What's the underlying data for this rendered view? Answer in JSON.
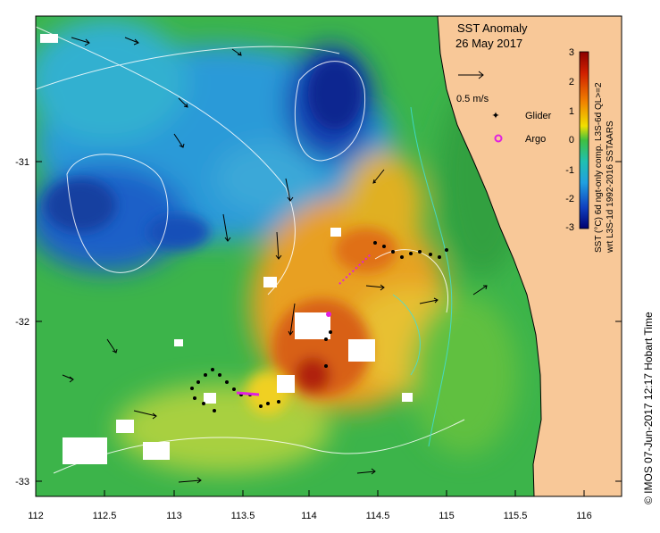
{
  "map": {
    "title": "SST Anomaly",
    "date": "26 May 2017",
    "x_ticks": [
      "112",
      "112.5",
      "113",
      "113.5",
      "114",
      "114.5",
      "115",
      "115.5",
      "116"
    ],
    "y_ticks": [
      "-31",
      "-32",
      "-33"
    ],
    "x_range": [
      112,
      116.3
    ],
    "y_range": [
      -33.1,
      -30.1
    ],
    "legend": {
      "vector_label": "0.5 m/s",
      "glider_label": "Glider",
      "argo_label": "Argo",
      "glider_color": "#e020e0",
      "argo_color": "#e020e0"
    },
    "colorbar": {
      "ticks": [
        "3",
        "2",
        "1",
        "0",
        "-1",
        "-2",
        "-3"
      ],
      "label_line1": "SST (°C) 6d ngt-only comp. L3S-6d QL>=2",
      "label_line2": "wrt L3S-1d 1992-2016 SSTAARS",
      "colors": [
        "#8b0000",
        "#d02000",
        "#f08000",
        "#f0e000",
        "#40c040",
        "#20a0e0",
        "#1040c0",
        "#000070"
      ]
    },
    "credit": "© IMOS 07-Jun-2017 12:17 Hobart Time",
    "land_color": "#f8c898"
  }
}
